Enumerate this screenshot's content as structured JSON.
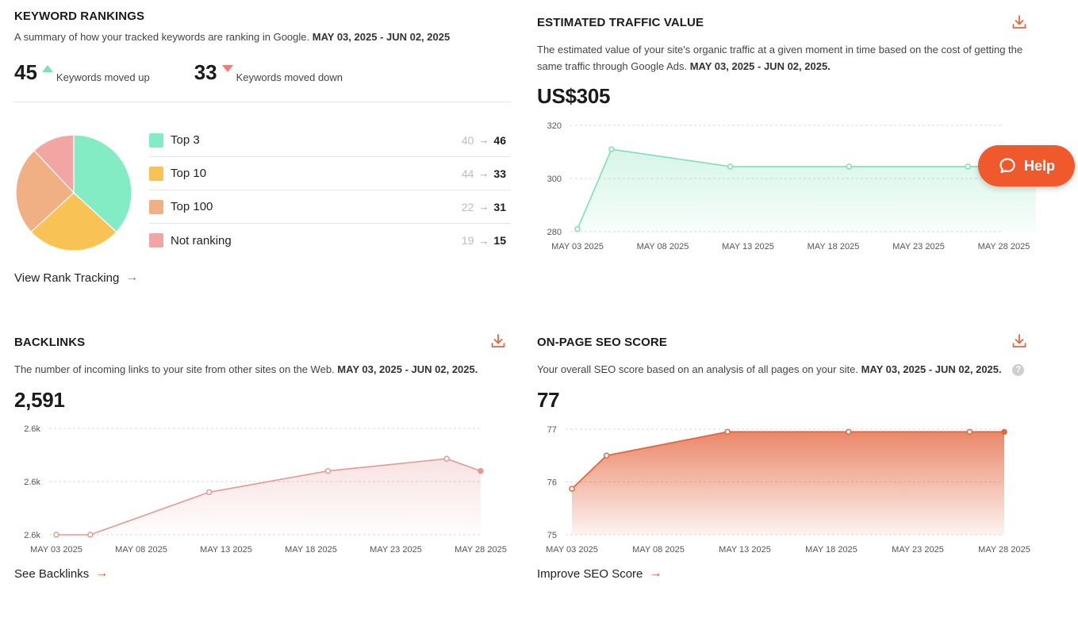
{
  "keyword_rankings": {
    "title": "KEYWORD RANKINGS",
    "desc": "A summary of how your tracked keywords are ranking in Google.",
    "date_range": "MAY 03, 2025 - JUN 02, 2025",
    "moved_up": {
      "count": "45",
      "label": "Keywords moved up"
    },
    "moved_down": {
      "count": "33",
      "label": "Keywords moved down"
    },
    "legend": [
      {
        "label": "Top 3",
        "old": "40",
        "new": "46",
        "color": "#84ecc4"
      },
      {
        "label": "Top 10",
        "old": "44",
        "new": "33",
        "color": "#f8c255"
      },
      {
        "label": "Top 100",
        "old": "22",
        "new": "31",
        "color": "#f1b083"
      },
      {
        "label": "Not ranking",
        "old": "19",
        "new": "15",
        "color": "#f1a6a4"
      }
    ],
    "link": "View Rank Tracking"
  },
  "traffic_value": {
    "title": "ESTIMATED TRAFFIC VALUE",
    "desc": "The estimated value of your site's organic traffic at a given moment in time based on the cost of getting the same traffic through Google Ads.",
    "date_range": "MAY 03, 2025 - JUN 02, 2025.",
    "value": "US$305"
  },
  "backlinks": {
    "title": "BACKLINKS",
    "desc": "The number of incoming links to your site from other sites on the Web.",
    "date_range": "MAY 03, 2025 - JUN 02, 2025.",
    "value": "2,591",
    "link": "See Backlinks"
  },
  "seo_score": {
    "title": "ON-PAGE SEO SCORE",
    "desc": "Your overall SEO score based on an analysis of all pages on your site.",
    "date_range": "MAY 03, 2025 - JUN 02, 2025.",
    "value": "77",
    "link": "Improve SEO Score",
    "help_q": "?"
  },
  "help_button": {
    "label": "Help"
  },
  "arrow_glyph": "→",
  "chart_data": [
    {
      "type": "pie",
      "categories": [
        "Top 3",
        "Top 10",
        "Top 100",
        "Not ranking"
      ],
      "values": [
        46,
        33,
        31,
        15
      ],
      "colors": [
        "#84ecc4",
        "#f8c255",
        "#f1b083",
        "#f1a6a4"
      ]
    },
    {
      "type": "area",
      "x_ticks": [
        "MAY 03 2025",
        "MAY 08 2025",
        "MAY 13 2025",
        "MAY 18 2025",
        "MAY 23 2025",
        "MAY 28 2025"
      ],
      "y_ticks": [
        "320",
        "300",
        "280"
      ],
      "ylim": [
        280,
        320
      ],
      "x": [
        "2025-05-03",
        "2025-05-05",
        "2025-05-12",
        "2025-05-19",
        "2025-05-26",
        "2025-05-30"
      ],
      "values": [
        281,
        311,
        304.5,
        304.5,
        304.5,
        304.5
      ],
      "color": "#7fe0b6",
      "grid": true
    },
    {
      "type": "area",
      "x_ticks": [
        "MAY 03 2025",
        "MAY 08 2025",
        "MAY 13 2025",
        "MAY 18 2025",
        "MAY 23 2025",
        "MAY 28 2025"
      ],
      "y_ticks": [
        "2.6k",
        "2.6k",
        "2.6k"
      ],
      "ylim": [
        2580,
        2600
      ],
      "x": [
        "2025-05-03",
        "2025-05-05",
        "2025-05-12",
        "2025-05-19",
        "2025-05-26",
        "2025-05-28"
      ],
      "values": [
        2580,
        2580,
        2588,
        2592,
        2594.3,
        2592
      ],
      "color": "#e39a95",
      "grid": true
    },
    {
      "type": "area",
      "x_ticks": [
        "MAY 03 2025",
        "MAY 08 2025",
        "MAY 13 2025",
        "MAY 18 2025",
        "MAY 23 2025",
        "MAY 28 2025"
      ],
      "y_ticks": [
        "77",
        "76",
        "75"
      ],
      "ylim": [
        75,
        77
      ],
      "x": [
        "2025-05-03",
        "2025-05-05",
        "2025-05-12",
        "2025-05-19",
        "2025-05-26",
        "2025-05-28"
      ],
      "values": [
        75.87,
        76.5,
        76.95,
        76.95,
        76.95,
        76.95
      ],
      "color": "#e4663e",
      "grid": true
    }
  ]
}
